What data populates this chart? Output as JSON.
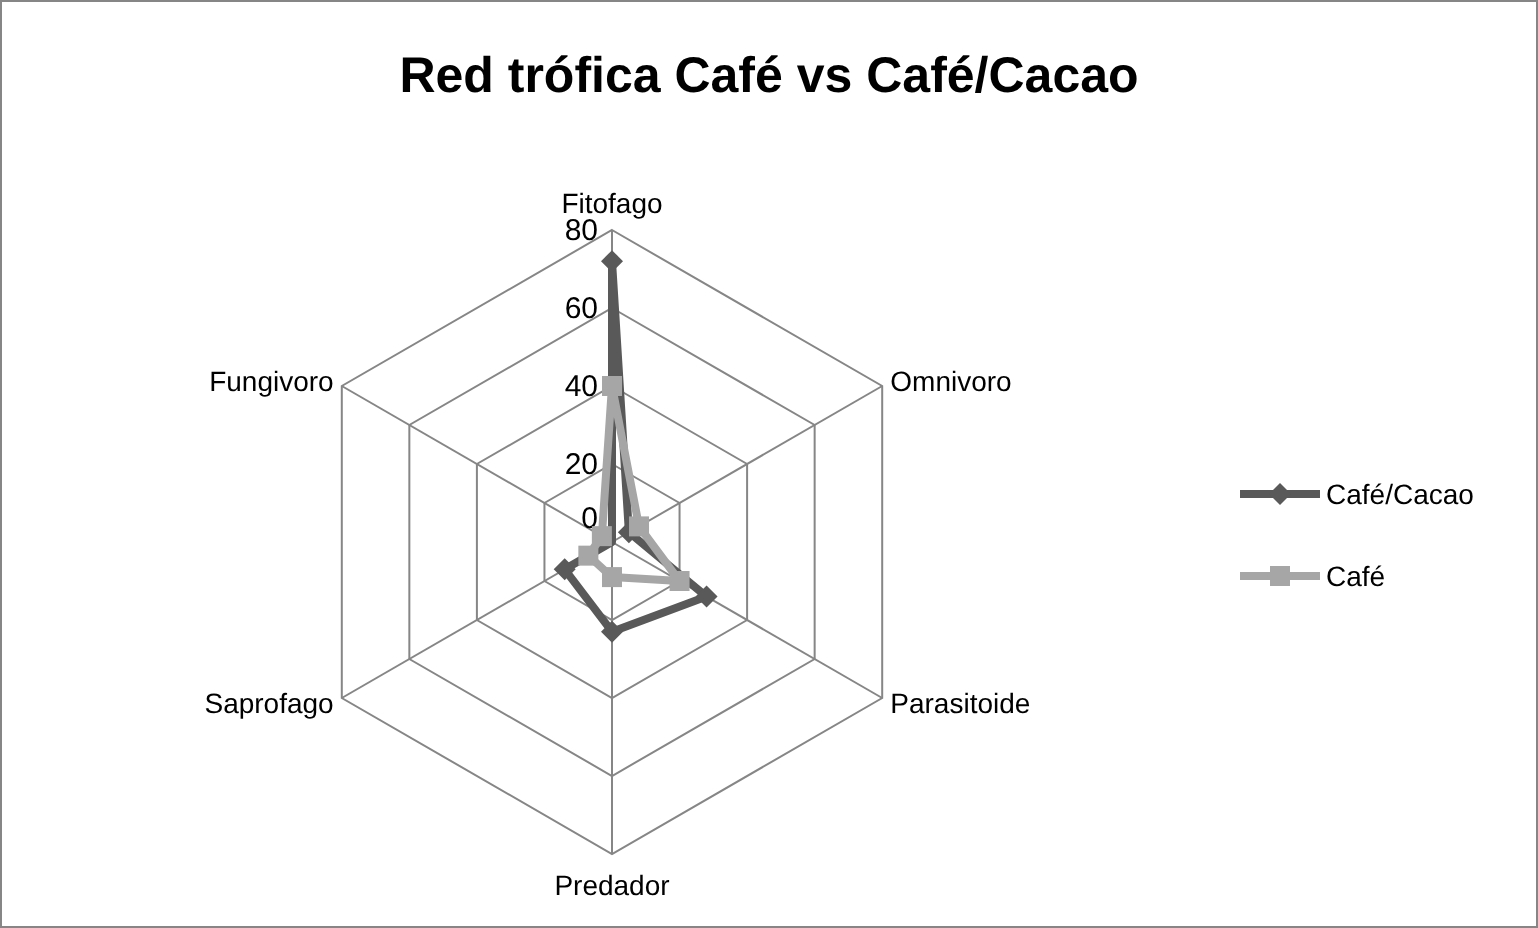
{
  "chart_data": {
    "type": "radar",
    "title": "Red trófica Café vs Café/Cacao",
    "categories": [
      "Fitofago",
      "Omnivoro",
      "Parasitoide",
      "Predador",
      "Saprofago",
      "Fungivoro"
    ],
    "series": [
      {
        "name": "Café/Cacao",
        "color": "#595959",
        "values": [
          72,
          5,
          28,
          23,
          14,
          null
        ],
        "marker": "diamond"
      },
      {
        "name": "Café",
        "color": "#a6a6a6",
        "values": [
          40,
          8,
          20,
          9,
          7,
          3
        ],
        "marker": "square"
      }
    ],
    "ylim": [
      0,
      80
    ],
    "yticks": [
      0,
      20,
      40,
      60,
      80
    ],
    "grid": true,
    "legend": "right"
  }
}
